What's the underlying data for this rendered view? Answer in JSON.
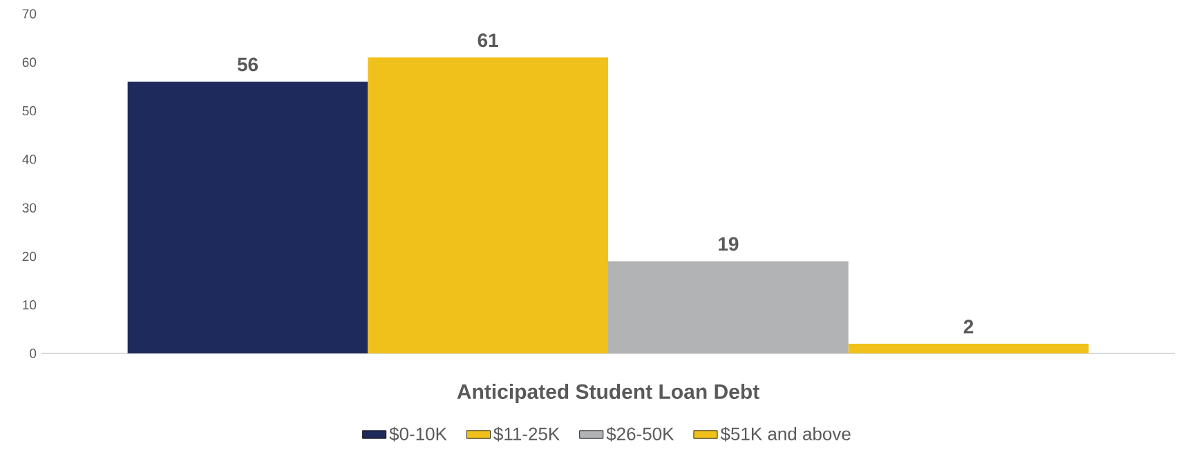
{
  "chart_data": {
    "type": "bar",
    "xlabel": "Anticipated Student Loan Debt",
    "categories": [
      null
    ],
    "series": [
      {
        "name": "$0-10K",
        "color": "#1f2a5c",
        "values": [
          56
        ]
      },
      {
        "name": "$11-25K",
        "color": "#f0c11a",
        "values": [
          61
        ]
      },
      {
        "name": "$26-50K",
        "color": "#b2b3b5",
        "values": [
          19
        ]
      },
      {
        "name": "$51K and above",
        "color": "#f0c11a",
        "values": [
          2
        ]
      }
    ],
    "ylim": [
      0,
      70
    ],
    "yticks": [
      0,
      10,
      20,
      30,
      40,
      50,
      60,
      70
    ],
    "data_labels": true,
    "legend": "bottom",
    "grid": false
  }
}
